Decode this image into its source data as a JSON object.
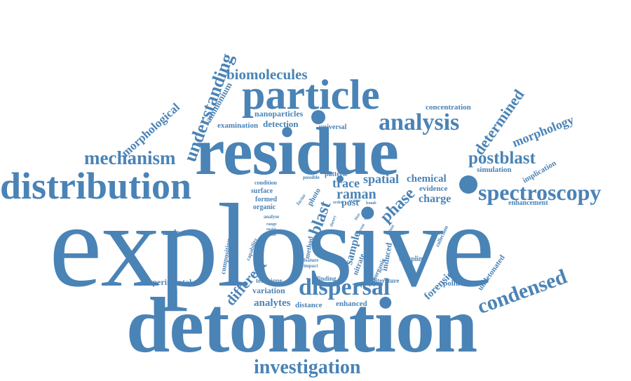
{
  "colors": {
    "word": "#4a83b6",
    "background": "#ffffff"
  },
  "words": {
    "explosive": "explosive",
    "detonation": "detonation",
    "residue": "residue",
    "particle": "particle",
    "distribution": "distribution",
    "spectroscopy": "spectroscopy",
    "analysis": "analysis",
    "dispersal": "dispersal",
    "condensed": "condensed",
    "investigation": "investigation",
    "mechanism": "mechanism",
    "understanding": "understanding",
    "morphological": "morphological",
    "biomolecules": "biomolecules",
    "determined": "determined",
    "morphology": "morphology",
    "postblast": "postblast",
    "raman": "raman",
    "spatial": "spatial",
    "chemical": "chemical",
    "phase": "phase",
    "blast": "blast",
    "different": "different",
    "charge": "charge",
    "trace": "trace",
    "forensic": "forensic",
    "ammonium": "ammonium",
    "nanoparticles": "nanoparticles",
    "detection": "detection",
    "examination": "examination",
    "universal": "universal",
    "concentration": "concentration",
    "simulation": "simulation",
    "implication": "implication",
    "enhancement": "enhancement",
    "evidence": "evidence",
    "molecule": "molecule",
    "experimental": "experimental",
    "analytes": "analytes",
    "distance": "distance",
    "enhanced": "enhanced",
    "variation": "variation",
    "technique": "technique",
    "finding": "finding",
    "literature": "literature",
    "pollutant": "pollutant",
    "undetonated": "undetonated",
    "sampling": "sampling",
    "composition": "composition",
    "capability": "capability",
    "method": "method",
    "surface": "surface",
    "formed": "formed",
    "organic": "organic",
    "condition": "condition",
    "analyse": "analyse",
    "range": "range",
    "pattern": "pattern",
    "possible": "possible",
    "photo": "photo",
    "post": "post",
    "sample": "sample",
    "nitrate": "nitrate",
    "inorganic": "inorganic",
    "induced": "induced",
    "collection": "collection",
    "feature": "feature",
    "impact": "impact",
    "factor": "factor",
    "order": "order",
    "scene": "scene",
    "bomb": "bomb",
    "theory": "theory",
    "model": "model",
    "trend": "trend",
    "metal": "metal",
    "event": "event",
    "study": "study",
    "bias": "bias",
    "limit": "limit"
  }
}
